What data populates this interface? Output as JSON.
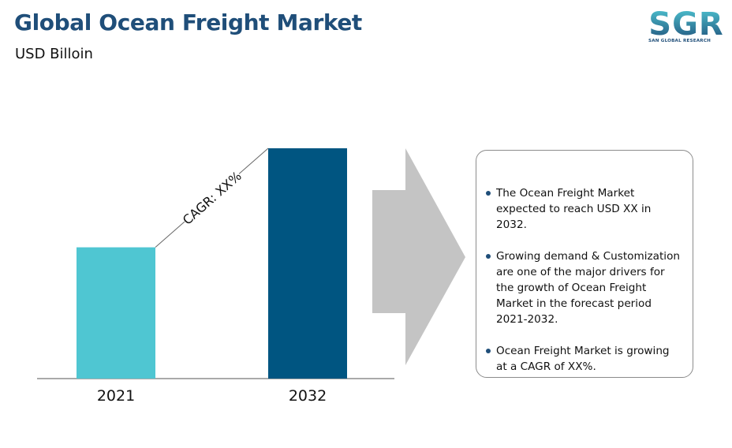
{
  "header": {
    "title": "Global Ocean Freight Market",
    "subtitle": "USD Billoin"
  },
  "logo": {
    "text": "SGR",
    "tagline": "SAN GLOBAL RESEARCH"
  },
  "chart_data": {
    "type": "bar",
    "title": "Global Ocean Freight Market",
    "ylabel": "USD Billoin",
    "categories": [
      "2021",
      "2032"
    ],
    "values": [
      57,
      100
    ],
    "colors": [
      "#4fc6d2",
      "#005581"
    ],
    "annotation": "CAGR: XX%",
    "grid": false,
    "legend": "none"
  },
  "info": {
    "points": [
      "The Ocean Freight Market expected to reach USD  XX in 2032.",
      "Growing demand & Customization are one of the major drivers for the growth of Ocean Freight Market in the forecast period 2021-2032.",
      "Ocean Freight Market is growing at a CAGR of XX%."
    ]
  },
  "colors": {
    "title": "#1f4e79",
    "arrow": "#c4c4c4",
    "bullet": "#1f4e79"
  }
}
